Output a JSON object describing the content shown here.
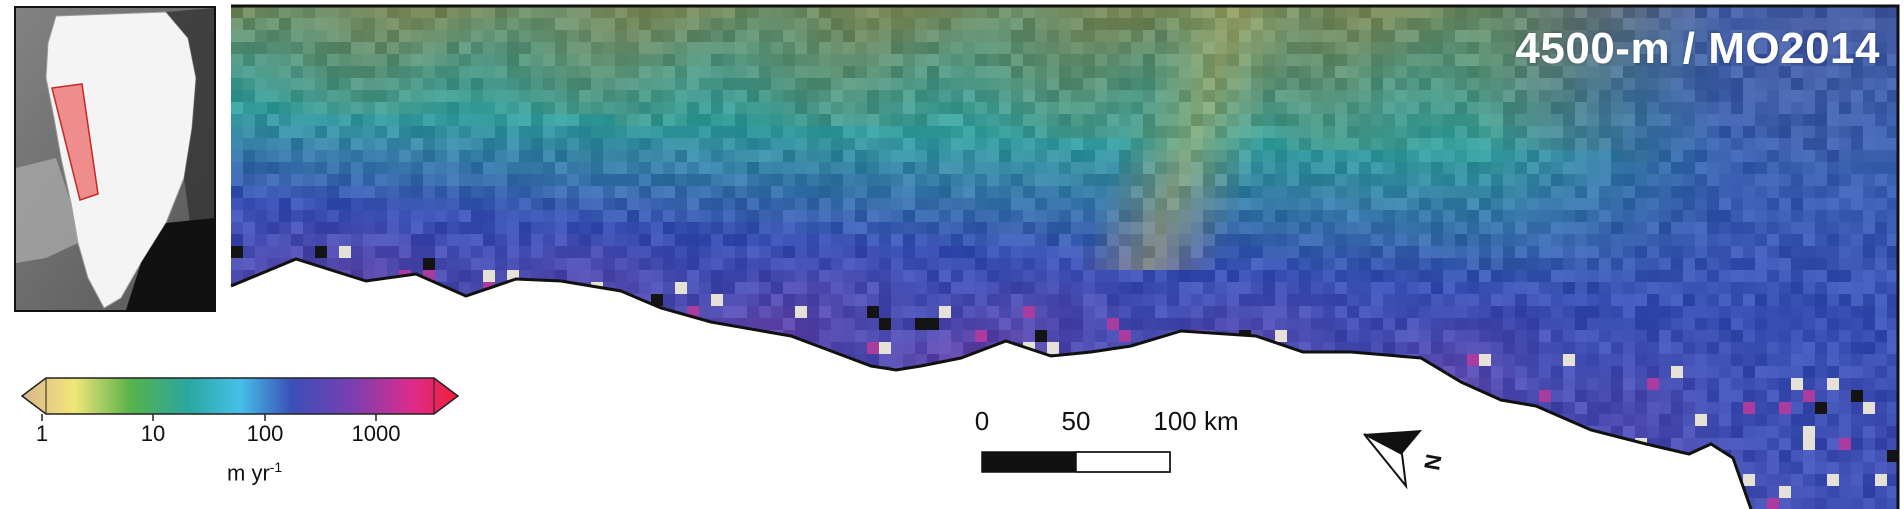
{
  "title": "4500-m / MO2014",
  "colorbar": {
    "ticks": [
      "1",
      "10",
      "100",
      "1000"
    ],
    "unit_base": "m yr",
    "unit_exponent": "-1",
    "colors": [
      "#d9b48a",
      "#f0e67a",
      "#57b24a",
      "#2aa6a0",
      "#46c0e8",
      "#3a4fb8",
      "#7a3fb0",
      "#e02a8a",
      "#ee2030"
    ]
  },
  "scalebar": {
    "labels": [
      "0",
      "50",
      "100 km"
    ]
  },
  "north_arrow": {
    "label": "N",
    "icon": "north-arrow-icon"
  },
  "inset": {
    "description_icon": "greenland-locator"
  }
}
